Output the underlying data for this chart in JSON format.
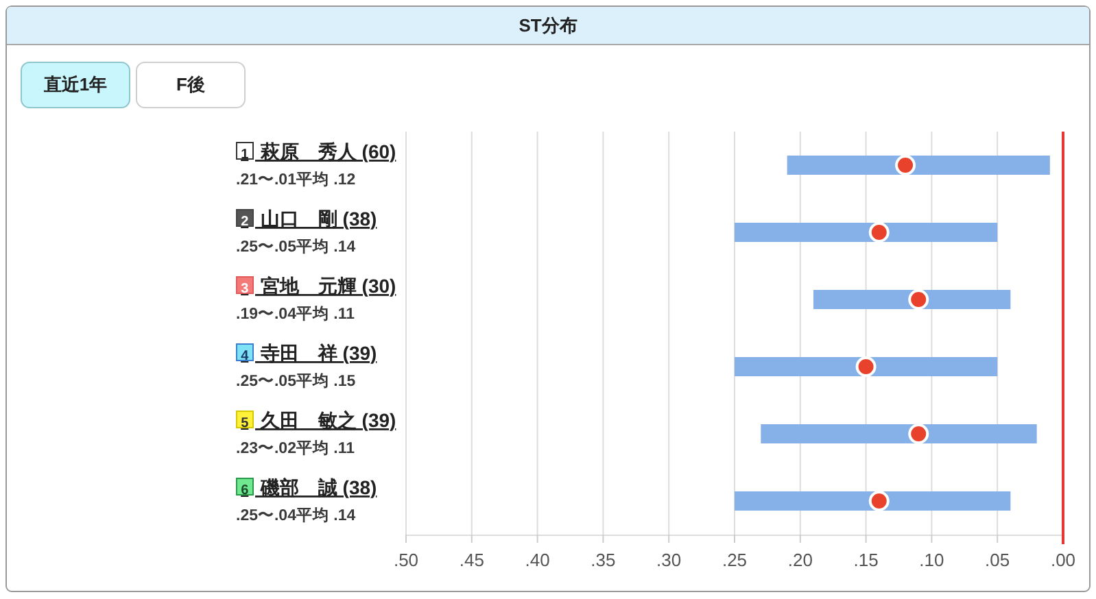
{
  "chart_data": {
    "type": "bar",
    "title": "ST分布",
    "orientation": "horizontal",
    "categories": [
      "1 萩原　秀人 (60)",
      "2 山口　剛 (38)",
      "3 宮地　元輝 (30)",
      "4 寺田　祥 (39)",
      "5 久田　敏之 (39)",
      "6 磯部　誠 (38)"
    ],
    "series": [
      {
        "color": "#86b0e8",
        "base": [
          0.01,
          0.05,
          0.04,
          0.05,
          0.02,
          0.04
        ],
        "values": [
          0.2,
          0.2,
          0.15,
          0.2,
          0.21,
          0.21
        ],
        "value_labels": [
          ".21〜.01平均 .12",
          ".25〜.05平均 .14",
          ".19〜.04平均 .11",
          ".25〜.05平均 .15",
          ".23〜.02平均 .11",
          ".25〜.04平均 .14"
        ]
      },
      {
        "type": "scatter",
        "color": "#e8412c",
        "x": [
          "1 萩原　秀人 (60)",
          "2 山口　剛 (38)",
          "3 宮地　元輝 (30)",
          "4 寺田　祥 (39)",
          "5 久田　敏之 (39)",
          "6 磯部　誠 (38)"
        ],
        "values": [
          0.12,
          0.14,
          0.11,
          0.15,
          0.11,
          0.14
        ]
      }
    ],
    "marker": "circle",
    "xlim": [
      0.5,
      0
    ],
    "xticks": [
      {
        "value": 0.5,
        "label": ".50"
      },
      {
        "value": 0.45,
        "label": ".45"
      },
      {
        "value": 0.4,
        "label": ".40"
      },
      {
        "value": 0.35,
        "label": ".35"
      },
      {
        "value": 0.3,
        "label": ".30"
      },
      {
        "value": 0.25,
        "label": ".25"
      },
      {
        "value": 0.2,
        "label": ".20"
      },
      {
        "value": 0.15,
        "label": ".15"
      },
      {
        "value": 0.1,
        "label": ".10"
      },
      {
        "value": 0.05,
        "label": ".05"
      },
      {
        "value": 0,
        "label": ".00"
      }
    ],
    "grid": "x",
    "ref_lines": [
      {
        "axis": "x",
        "value": 0,
        "color": "#e53935"
      }
    ],
    "annotations": [
      "直近1年",
      "F後"
    ]
  }
}
